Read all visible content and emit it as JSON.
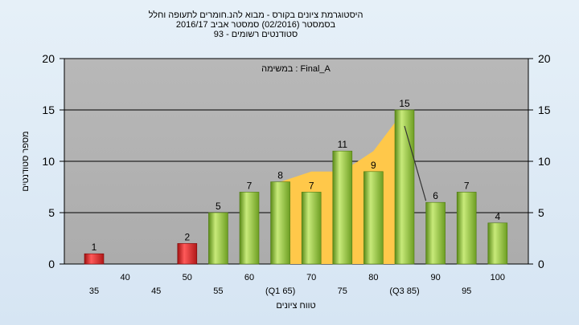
{
  "chart_data": {
    "type": "bar",
    "title_lines": [
      "היסטוגרמת ציונים בקורס - מבוא להנ.חומרים לתעופה וחלל",
      "בסמסטר (02/2016) סמסטר אביב 2016/17",
      "סטודנטים רשומים - 93"
    ],
    "annotation": "במשימה : Final_A",
    "ylabel": "מספר סטודנטים",
    "xlabel": "טווח ציונים",
    "ylim": [
      0,
      20
    ],
    "yticks": [
      0,
      5,
      10,
      15,
      20
    ],
    "grid": true,
    "x_tick_labels": [
      "35",
      "40",
      "45",
      "50",
      "55",
      "60",
      "(Q1 65)",
      "70",
      "75",
      "80",
      "(Q3 85)",
      "90",
      "95",
      "100"
    ],
    "bars": [
      {
        "x": "35",
        "value": 1,
        "color": "#e02020"
      },
      {
        "x": "50",
        "value": 2,
        "color": "#e02020"
      },
      {
        "x": "55",
        "value": 5,
        "color": "#8fc63f"
      },
      {
        "x": "60",
        "value": 7,
        "color": "#8fc63f"
      },
      {
        "x": "65",
        "value": 8,
        "color": "#8fc63f"
      },
      {
        "x": "70",
        "value": 7,
        "color": "#8fc63f"
      },
      {
        "x": "75",
        "value": 11,
        "color": "#8fc63f"
      },
      {
        "x": "80",
        "value": 9,
        "color": "#8fc63f"
      },
      {
        "x": "85",
        "value": 15,
        "color": "#8fc63f"
      },
      {
        "x": "90",
        "value": 6,
        "color": "#8fc63f"
      },
      {
        "x": "95",
        "value": 7,
        "color": "#8fc63f"
      },
      {
        "x": "100",
        "value": 4,
        "color": "#8fc63f"
      }
    ],
    "interquartile_band": {
      "color": "#ffc84a",
      "x": [
        65,
        70,
        75,
        80,
        85
      ],
      "y": [
        8,
        9,
        9,
        11,
        15
      ]
    },
    "trend_segment": {
      "x": [
        85,
        90
      ],
      "y": [
        15,
        6
      ],
      "color": "#333333"
    },
    "colors": {
      "plot_bg": "#b4b4b4",
      "grid": "#000000",
      "page_bg": "#dde9f5"
    }
  }
}
